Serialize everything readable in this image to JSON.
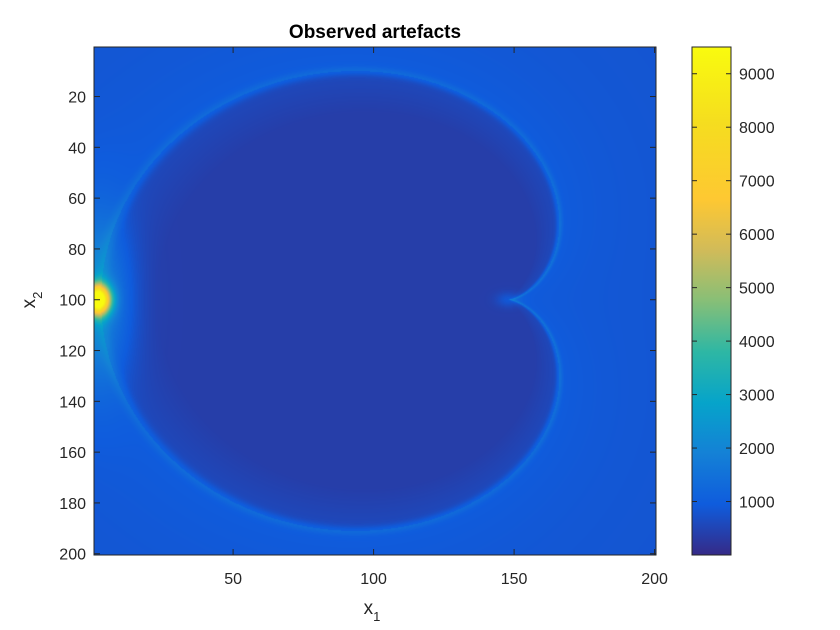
{
  "chart_data": {
    "type": "heatmap",
    "title": "Observed artefacts",
    "xlabel": {
      "base": "x",
      "sub": "1"
    },
    "ylabel": {
      "base": "x",
      "sub": "2"
    },
    "xlim": [
      0.5,
      200.5
    ],
    "ylim": [
      0.5,
      200.5
    ],
    "y_direction": "reverse",
    "xticks": [
      50,
      100,
      150,
      200
    ],
    "yticks": [
      20,
      40,
      60,
      80,
      100,
      120,
      140,
      160,
      180,
      200
    ],
    "colormap": "parula",
    "colorbar": {
      "location": "right",
      "range": [
        0,
        9500
      ],
      "ticks": [
        1000,
        2000,
        3000,
        4000,
        5000,
        6000,
        7000,
        8000,
        9000
      ]
    },
    "field": {
      "background_value": 800,
      "interior_value": 380,
      "cardioid": {
        "cusp_x": 148,
        "cusp_y": 100,
        "vertex_x": 3,
        "vertex_y": 100,
        "top_y": 10,
        "bottom_y": 191
      },
      "edge_value_on_ring": 1500,
      "peak": {
        "x": 2,
        "y": 100,
        "value": 9400
      }
    }
  }
}
